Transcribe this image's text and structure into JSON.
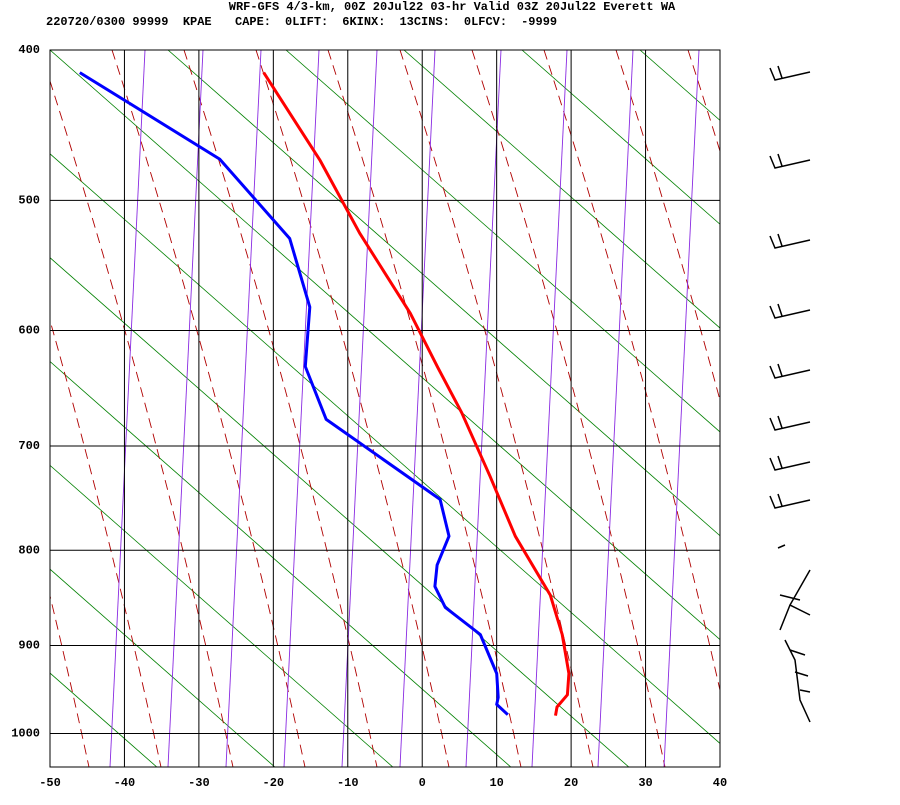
{
  "chart_data": {
    "type": "skewt",
    "title": "WRF-GFS 4/3-km, 00Z 20Jul22 03-hr Valid 03Z 20Jul22 Everett WA",
    "station": "220720/0300 99999  KPAE",
    "indices": [
      {
        "label": "CAPE:",
        "value": 0
      },
      {
        "label": "LIFT:",
        "value": 6
      },
      {
        "label": "KINX:",
        "value": 13
      },
      {
        "label": "CINS:",
        "value": 0
      },
      {
        "label": "LFCV:",
        "value": -9999
      }
    ],
    "xlim": [
      -50,
      40
    ],
    "xticks": [
      -50,
      -40,
      -30,
      -20,
      -10,
      0,
      10,
      20,
      30,
      40
    ],
    "ylim": [
      400,
      1040
    ],
    "yticks": [
      400,
      500,
      600,
      700,
      800,
      900,
      1000
    ],
    "grid": true,
    "series": [
      {
        "color": "#ff0000",
        "x": [
          -21.3,
          -13.7,
          -8.4,
          -1.6,
          2.1,
          5.3,
          9.1,
          12.5,
          17.2,
          18.8,
          19.7,
          19.5,
          18.1,
          17.9
        ],
        "values": [
          414,
          472,
          524,
          586,
          631,
          670,
          728,
          786,
          846,
          888,
          931,
          955,
          969,
          979
        ]
      },
      {
        "color": "#0000ff",
        "x": [
          -46,
          -27.2,
          -17.8,
          -15.1,
          -15.7,
          -12.9,
          2.4,
          3.6,
          2.0,
          1.7,
          3.1,
          7.8,
          10.0,
          10.2,
          10.0,
          11.5
        ],
        "values": [
          414,
          471,
          528,
          581,
          630,
          676,
          750,
          786,
          815,
          837,
          859,
          888,
          931,
          958,
          966,
          978
        ]
      }
    ]
  }
}
